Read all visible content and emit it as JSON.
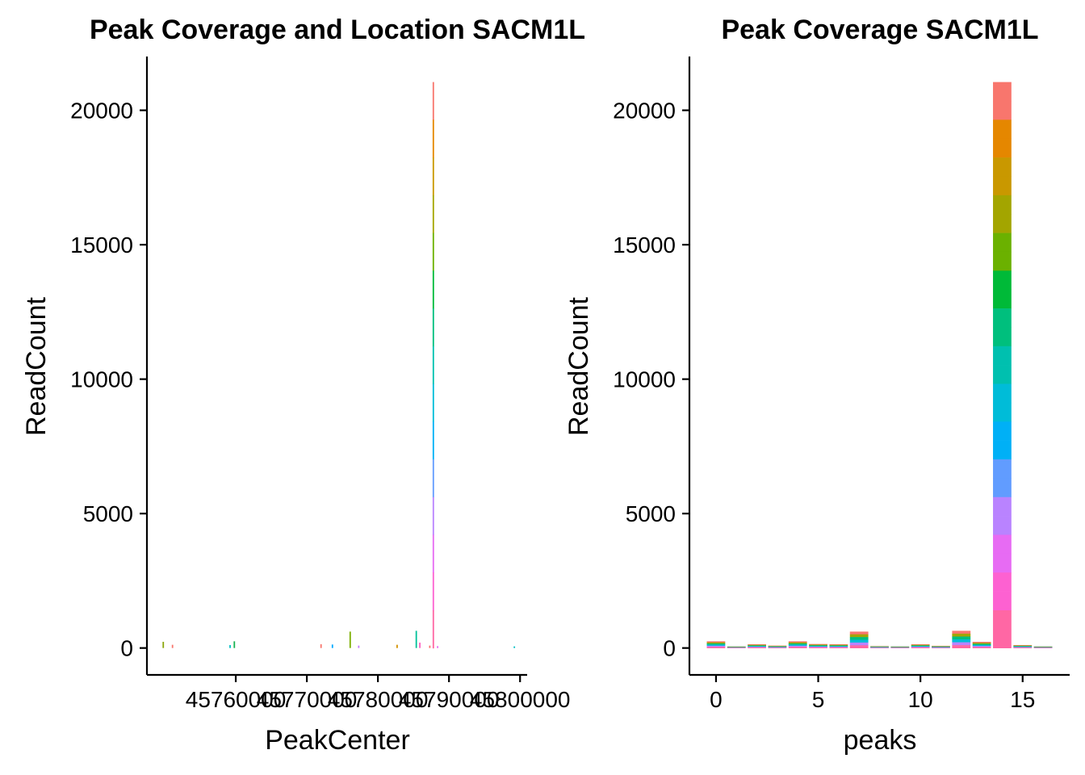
{
  "chart_data": [
    {
      "type": "bar",
      "title": "Peak Coverage and Location SACM1L",
      "xlabel": "PeakCenter",
      "ylabel": "ReadCount",
      "xlim": [
        45747500,
        45801000
      ],
      "ylim": [
        -1000,
        22000
      ],
      "xticks": [
        45760000,
        45770000,
        45780000,
        45790000,
        45800000
      ],
      "xtick_labels": [
        "45760000",
        "45770000",
        "45780000",
        "45790000",
        "45800000"
      ],
      "yticks": [
        0,
        5000,
        10000,
        15000,
        20000
      ],
      "ytick_labels": [
        "0",
        "5000",
        "10000",
        "15000",
        "20000"
      ],
      "grid": false,
      "legend": "none",
      "bars": [
        {
          "x": 45749800,
          "value": 230,
          "color": "#8aa60a"
        },
        {
          "x": 45751100,
          "value": 120,
          "color": "#f8766d"
        },
        {
          "x": 45759200,
          "value": 110,
          "color": "#00bfc4"
        },
        {
          "x": 45759800,
          "value": 250,
          "color": "#19b352"
        },
        {
          "x": 45772000,
          "value": 140,
          "color": "#f8766d"
        },
        {
          "x": 45773600,
          "value": 130,
          "color": "#00a9ff"
        },
        {
          "x": 45776100,
          "value": 610,
          "color": "#7cae00"
        },
        {
          "x": 45777300,
          "value": 90,
          "color": "#c77cff"
        },
        {
          "x": 45782700,
          "value": 120,
          "color": "#d39200"
        },
        {
          "x": 45785400,
          "value": 640,
          "color": "#00c19a"
        },
        {
          "x": 45785900,
          "value": 200,
          "color": "#ff61c3"
        },
        {
          "x": 45787800,
          "value": 21050,
          "color": "#00bfc4"
        },
        {
          "x": 45787300,
          "value": 90,
          "color": "#f8766d"
        },
        {
          "x": 45788400,
          "value": 70,
          "color": "#e76bf3"
        },
        {
          "x": 45799200,
          "value": 60,
          "color": "#00bfc4"
        }
      ]
    },
    {
      "type": "bar",
      "title": "Peak Coverage SACM1L",
      "xlabel": "peaks",
      "ylabel": "ReadCount",
      "xlim": [
        -1.3,
        17.3
      ],
      "ylim": [
        -1000,
        22000
      ],
      "xticks": [
        0,
        5,
        10,
        15
      ],
      "xtick_labels": [
        "0",
        "5",
        "10",
        "15"
      ],
      "yticks": [
        0,
        5000,
        10000,
        15000,
        20000
      ],
      "ytick_labels": [
        "0",
        "5000",
        "10000",
        "15000",
        "20000"
      ],
      "grid": false,
      "legend": "none",
      "stacked_fill": "rainbow gradient",
      "categories": [
        0,
        1,
        2,
        3,
        4,
        5,
        6,
        7,
        8,
        9,
        10,
        11,
        12,
        13,
        14,
        15,
        16
      ],
      "values": [
        250,
        60,
        140,
        90,
        250,
        150,
        140,
        610,
        70,
        60,
        140,
        80,
        640,
        230,
        21050,
        110,
        60
      ]
    }
  ]
}
